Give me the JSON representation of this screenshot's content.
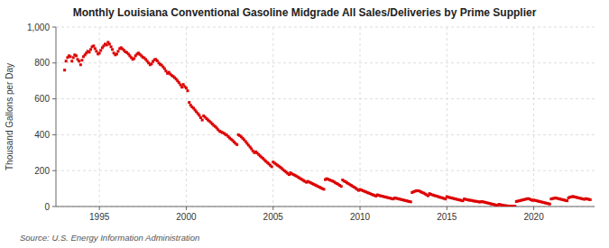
{
  "chart_data": {
    "type": "scatter",
    "title": "Monthly Louisiana Conventional Gasoline Midgrade All Sales/Deliveries by Prime Supplier",
    "y_label": "Thousand Gallons per Day",
    "source": "Source: U.S. Energy Information Administration",
    "color": "#dd0000",
    "marker": "square",
    "grid": true,
    "xlim": [
      1992.5,
      2023.5
    ],
    "xticks": [
      1995,
      2000,
      2005,
      2010,
      2015,
      2020
    ],
    "ylim": [
      0,
      1000
    ],
    "yticks": [
      0,
      200,
      400,
      600,
      800,
      {
        "value": 1000,
        "label": "1,000"
      }
    ],
    "x": [
      1993.0,
      1993.08,
      1993.17,
      1993.25,
      1993.33,
      1993.42,
      1993.5,
      1993.58,
      1993.67,
      1993.75,
      1993.83,
      1993.92,
      1994.0,
      1994.08,
      1994.17,
      1994.25,
      1994.33,
      1994.42,
      1994.5,
      1994.58,
      1994.67,
      1994.75,
      1994.83,
      1994.92,
      1995.0,
      1995.08,
      1995.17,
      1995.25,
      1995.33,
      1995.42,
      1995.5,
      1995.58,
      1995.67,
      1995.75,
      1995.83,
      1995.92,
      1996.0,
      1996.08,
      1996.17,
      1996.25,
      1996.33,
      1996.42,
      1996.5,
      1996.58,
      1996.67,
      1996.75,
      1996.83,
      1996.92,
      1997.0,
      1997.08,
      1997.17,
      1997.25,
      1997.33,
      1997.42,
      1997.5,
      1997.58,
      1997.67,
      1997.75,
      1997.83,
      1997.92,
      1998.0,
      1998.08,
      1998.17,
      1998.25,
      1998.33,
      1998.42,
      1998.5,
      1998.58,
      1998.67,
      1998.75,
      1998.83,
      1998.92,
      1999.0,
      1999.08,
      1999.17,
      1999.25,
      1999.33,
      1999.42,
      1999.5,
      1999.58,
      1999.67,
      1999.75,
      1999.83,
      1999.92,
      2000.0,
      2000.08,
      2000.17,
      2000.25,
      2000.33,
      2000.42,
      2000.5,
      2000.58,
      2000.67,
      2000.75,
      2000.83,
      2000.92,
      2001.0,
      2001.08,
      2001.17,
      2001.25,
      2001.33,
      2001.42,
      2001.5,
      2001.58,
      2001.67,
      2001.75,
      2001.83,
      2001.92,
      2002.0,
      2002.08,
      2002.17,
      2002.25,
      2002.33,
      2002.42,
      2002.5,
      2002.58,
      2002.67,
      2002.75,
      2002.83,
      2002.92,
      2003.0,
      2003.08,
      2003.17,
      2003.25,
      2003.33,
      2003.42,
      2003.5,
      2003.58,
      2003.67,
      2003.75,
      2003.83,
      2003.92,
      2004.0,
      2004.08,
      2004.17,
      2004.25,
      2004.33,
      2004.42,
      2004.5,
      2004.58,
      2004.67,
      2004.75,
      2004.83,
      2004.92,
      2005.0,
      2005.08,
      2005.17,
      2005.25,
      2005.33,
      2005.42,
      2005.5,
      2005.58,
      2005.67,
      2005.75,
      2005.83,
      2005.92,
      2006.0,
      2006.08,
      2006.17,
      2006.25,
      2006.33,
      2006.42,
      2006.5,
      2006.58,
      2006.67,
      2006.75,
      2006.83,
      2006.92,
      2007.0,
      2007.08,
      2007.17,
      2007.25,
      2007.33,
      2007.42,
      2007.5,
      2007.58,
      2007.67,
      2007.75,
      2007.83,
      2007.92,
      2008.0,
      2008.08,
      2008.17,
      2008.25,
      2008.33,
      2008.42,
      2008.5,
      2008.58,
      2008.67,
      2008.75,
      2008.83,
      2008.92,
      2009.0,
      2009.08,
      2009.17,
      2009.25,
      2009.33,
      2009.42,
      2009.5,
      2009.58,
      2009.67,
      2009.75,
      2009.83,
      2009.92,
      2010.0,
      2010.08,
      2010.17,
      2010.25,
      2010.33,
      2010.42,
      2010.5,
      2010.58,
      2010.67,
      2010.75,
      2010.83,
      2010.92,
      2011.0,
      2011.08,
      2011.17,
      2011.25,
      2011.33,
      2011.42,
      2011.5,
      2011.58,
      2011.67,
      2011.75,
      2011.83,
      2011.92,
      2012.0,
      2012.08,
      2012.17,
      2012.25,
      2012.33,
      2012.42,
      2012.5,
      2012.58,
      2012.67,
      2012.75,
      2012.83,
      2012.92,
      2013.0,
      2013.08,
      2013.17,
      2013.25,
      2013.33,
      2013.42,
      2013.5,
      2013.58,
      2013.67,
      2013.75,
      2013.83,
      2013.92,
      2014.0,
      2014.08,
      2014.17,
      2014.25,
      2014.33,
      2014.42,
      2014.5,
      2014.58,
      2014.67,
      2014.75,
      2014.83,
      2014.92,
      2015.0,
      2015.08,
      2015.17,
      2015.25,
      2015.33,
      2015.42,
      2015.5,
      2015.58,
      2015.67,
      2015.75,
      2015.83,
      2015.92,
      2016.0,
      2016.08,
      2016.17,
      2016.25,
      2016.33,
      2016.42,
      2016.5,
      2016.58,
      2016.67,
      2016.75,
      2016.83,
      2016.92,
      2017.0,
      2017.08,
      2017.17,
      2017.25,
      2017.33,
      2017.42,
      2017.5,
      2017.58,
      2017.67,
      2017.75,
      2017.83,
      2017.92,
      2018.0,
      2018.08,
      2018.17,
      2018.25,
      2018.33,
      2018.42,
      2018.5,
      2018.58,
      2018.67,
      2018.75,
      2018.83,
      2018.92,
      2019.0,
      2019.08,
      2019.17,
      2019.25,
      2019.33,
      2019.42,
      2019.5,
      2019.58,
      2019.67,
      2019.75,
      2019.83,
      2019.92,
      2020.0,
      2020.08,
      2020.17,
      2020.25,
      2020.33,
      2020.42,
      2020.5,
      2020.58,
      2020.67,
      2020.75,
      2020.83,
      2020.92,
      2021.0,
      2021.08,
      2021.17,
      2021.25,
      2021.33,
      2021.42,
      2021.5,
      2021.58,
      2021.67,
      2021.75,
      2021.83,
      2021.92,
      2022.0,
      2022.08,
      2022.17,
      2022.25,
      2022.33,
      2022.42,
      2022.5,
      2022.58,
      2022.67,
      2022.75,
      2022.83,
      2022.92,
      2023.0,
      2023.08,
      2023.17,
      2023.25
    ],
    "values": [
      760,
      810,
      830,
      840,
      835,
      810,
      830,
      845,
      840,
      820,
      810,
      790,
      815,
      835,
      845,
      855,
      865,
      860,
      875,
      890,
      895,
      880,
      865,
      850,
      855,
      870,
      885,
      895,
      905,
      900,
      915,
      905,
      890,
      875,
      855,
      845,
      850,
      865,
      880,
      885,
      878,
      870,
      862,
      858,
      850,
      840,
      830,
      820,
      825,
      840,
      850,
      855,
      848,
      840,
      832,
      828,
      820,
      810,
      800,
      790,
      795,
      808,
      818,
      820,
      812,
      800,
      792,
      788,
      778,
      768,
      755,
      742,
      748,
      738,
      730,
      725,
      718,
      710,
      700,
      690,
      678,
      665,
      680,
      668,
      660,
      645,
      580,
      565,
      555,
      548,
      538,
      528,
      518,
      508,
      495,
      482,
      505,
      498,
      490,
      482,
      476,
      468,
      460,
      452,
      446,
      438,
      428,
      420,
      416,
      412,
      408,
      402,
      398,
      390,
      382,
      375,
      368,
      360,
      352,
      345,
      400,
      395,
      388,
      380,
      372,
      362,
      352,
      342,
      332,
      322,
      310,
      300,
      305,
      298,
      290,
      282,
      275,
      268,
      260,
      252,
      245,
      238,
      230,
      222,
      248,
      242,
      236,
      230,
      225,
      218,
      212,
      205,
      198,
      192,
      185,
      178,
      188,
      182,
      178,
      174,
      170,
      165,
      160,
      155,
      150,
      145,
      140,
      135,
      140,
      136,
      132,
      128,
      124,
      120,
      116,
      112,
      108,
      104,
      100,
      96,
      150,
      155,
      152,
      148,
      145,
      142,
      138,
      132,
      128,
      124,
      118,
      112,
      148,
      142,
      138,
      132,
      128,
      122,
      118,
      112,
      108,
      102,
      96,
      90,
      95,
      92,
      88,
      85,
      82,
      78,
      75,
      72,
      68,
      65,
      62,
      58,
      65,
      62,
      60,
      58,
      56,
      54,
      52,
      50,
      48,
      46,
      44,
      42,
      48,
      46,
      44,
      42,
      40,
      38,
      36,
      34,
      32,
      30,
      28,
      26,
      78,
      82,
      85,
      88,
      88,
      86,
      82,
      78,
      75,
      70,
      65,
      60,
      72,
      68,
      65,
      62,
      60,
      58,
      55,
      52,
      50,
      48,
      45,
      42,
      55,
      52,
      50,
      48,
      46,
      44,
      42,
      40,
      38,
      36,
      34,
      32,
      42,
      40,
      38,
      36,
      35,
      34,
      32,
      30,
      29,
      28,
      26,
      25,
      28,
      26,
      24,
      22,
      20,
      18,
      16,
      14,
      12,
      10,
      8,
      6,
      12,
      10,
      8,
      6,
      5,
      4,
      3,
      2,
      2,
      2,
      2,
      2,
      28,
      30,
      32,
      34,
      36,
      38,
      40,
      42,
      44,
      42,
      38,
      34,
      36,
      34,
      32,
      30,
      28,
      26,
      24,
      22,
      20,
      18,
      16,
      14,
      42,
      44,
      46,
      48,
      46,
      44,
      42,
      40,
      38,
      36,
      34,
      32,
      48,
      52,
      54,
      56,
      54,
      52,
      50,
      48,
      46,
      44,
      42,
      40,
      44,
      42,
      40,
      38
    ]
  }
}
